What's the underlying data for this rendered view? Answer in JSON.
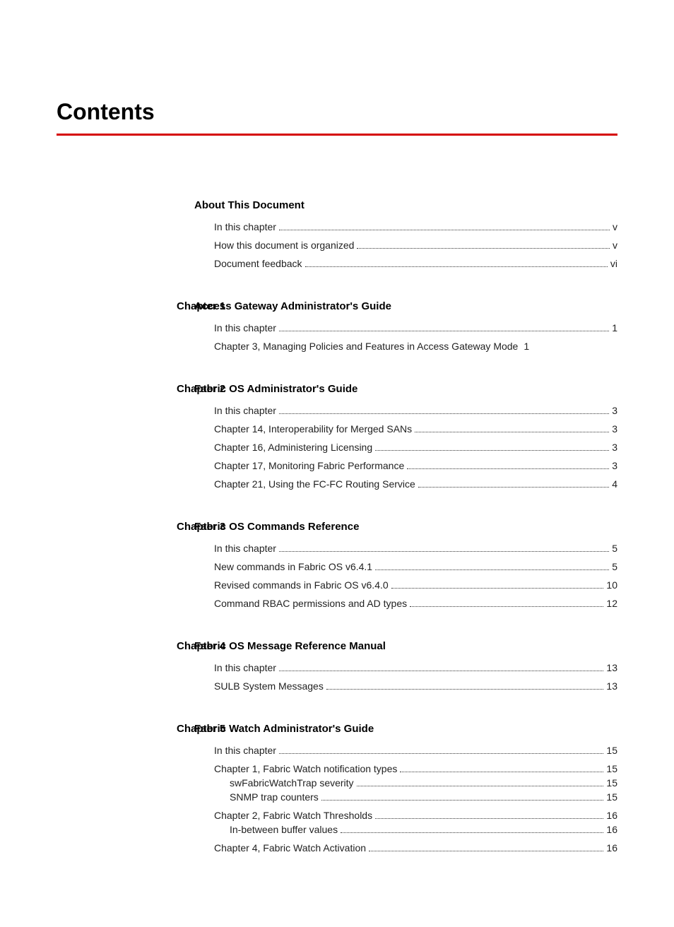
{
  "page_title": "Contents",
  "rule_color": "#d50000",
  "sections": [
    {
      "chapter_label": "",
      "section_title": "About This Document",
      "entries": [
        {
          "text": "In this chapter",
          "page": "v",
          "indent": 0,
          "tight": false,
          "dots": true
        },
        {
          "text": "How this document is organized",
          "page": "v",
          "indent": 0,
          "tight": false,
          "dots": true
        },
        {
          "text": "Document feedback",
          "page": "vi",
          "indent": 0,
          "tight": false,
          "dots": true
        }
      ]
    },
    {
      "chapter_label": "Chapter 1",
      "section_title": "Access Gateway Administrator's Guide",
      "entries": [
        {
          "text": "In this chapter",
          "page": "1",
          "indent": 0,
          "tight": false,
          "dots": true
        },
        {
          "text": "Chapter 3, Managing Policies and Features in Access Gateway Mode",
          "page": "1",
          "indent": 0,
          "tight": false,
          "dots": false
        }
      ]
    },
    {
      "chapter_label": "Chapter 2",
      "section_title": "Fabric OS Administrator's Guide",
      "entries": [
        {
          "text": "In this chapter",
          "page": "3",
          "indent": 0,
          "tight": false,
          "dots": true
        },
        {
          "text": "Chapter 14, Interoperability for Merged SANs",
          "page": "3",
          "indent": 0,
          "tight": false,
          "dots": true
        },
        {
          "text": "Chapter 16, Administering Licensing",
          "page": "3",
          "indent": 0,
          "tight": false,
          "dots": true
        },
        {
          "text": "Chapter 17, Monitoring Fabric Performance",
          "page": "3",
          "indent": 0,
          "tight": false,
          "dots": true
        },
        {
          "text": "Chapter 21, Using the FC-FC Routing Service",
          "page": "4",
          "indent": 0,
          "tight": false,
          "dots": true
        }
      ]
    },
    {
      "chapter_label": "Chapter 3",
      "section_title": "Fabric OS Commands Reference",
      "entries": [
        {
          "text": "In this chapter",
          "page": "5",
          "indent": 0,
          "tight": false,
          "dots": true
        },
        {
          "text": "New commands in Fabric OS v6.4.1",
          "page": "5",
          "indent": 0,
          "tight": false,
          "dots": true
        },
        {
          "text": "Revised commands in Fabric OS v6.4.0",
          "page": "10",
          "indent": 0,
          "tight": false,
          "dots": true
        },
        {
          "text": "Command RBAC permissions and AD types",
          "page": "12",
          "indent": 0,
          "tight": false,
          "dots": true
        }
      ]
    },
    {
      "chapter_label": "Chapter 4",
      "section_title": "Fabric OS Message Reference Manual",
      "entries": [
        {
          "text": "In this chapter",
          "page": "13",
          "indent": 0,
          "tight": false,
          "dots": true
        },
        {
          "text": "SULB System Messages",
          "page": "13",
          "indent": 0,
          "tight": false,
          "dots": true
        }
      ]
    },
    {
      "chapter_label": "Chapter 5",
      "section_title": "Fabric Watch Administrator's Guide",
      "entries": [
        {
          "text": "In this chapter",
          "page": "15",
          "indent": 0,
          "tight": false,
          "dots": true
        },
        {
          "text": "Chapter 1, Fabric Watch notification types",
          "page": "15",
          "indent": 0,
          "tight": true,
          "dots": true
        },
        {
          "text": "swFabricWatchTrap severity",
          "page": "15",
          "indent": 1,
          "tight": true,
          "dots": true
        },
        {
          "text": "SNMP trap counters",
          "page": "15",
          "indent": 1,
          "tight": false,
          "dots": true
        },
        {
          "text": "Chapter 2, Fabric Watch Thresholds",
          "page": "16",
          "indent": 0,
          "tight": true,
          "dots": true
        },
        {
          "text": "In-between buffer values",
          "page": "16",
          "indent": 1,
          "tight": false,
          "dots": true
        },
        {
          "text": "Chapter 4, Fabric Watch Activation",
          "page": "16",
          "indent": 0,
          "tight": false,
          "dots": true
        }
      ]
    }
  ]
}
